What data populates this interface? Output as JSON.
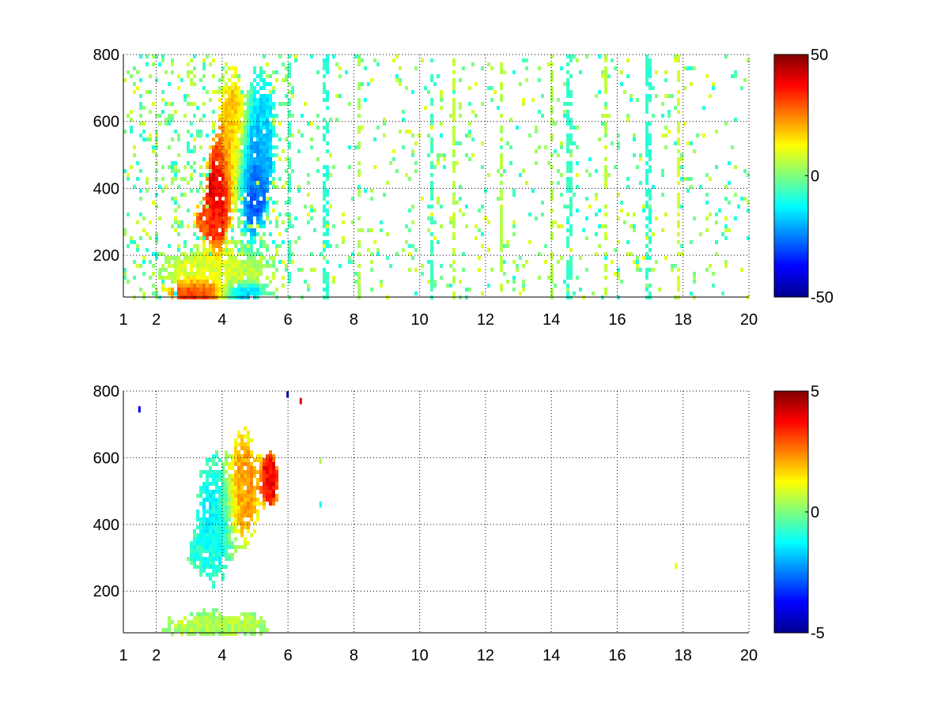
{
  "chart_data": [
    {
      "type": "heatmap",
      "title": "",
      "xlabel": "",
      "ylabel": "",
      "xlim": [
        1,
        20
      ],
      "ylim": [
        75,
        800
      ],
      "x_ticks": [
        1,
        2,
        4,
        6,
        8,
        10,
        12,
        14,
        16,
        18,
        20
      ],
      "y_ticks": [
        200,
        400,
        600,
        800
      ],
      "grid": true,
      "colormap": "jet",
      "colorbar": {
        "range": [
          -50,
          50
        ],
        "ticks": [
          -50,
          0,
          50
        ]
      },
      "blobs": [
        {
          "x": 3.8,
          "y": 390,
          "sx": 0.22,
          "sy": 90,
          "value": 42
        },
        {
          "x": 3.55,
          "y": 310,
          "sx": 0.3,
          "sy": 35,
          "value": 28
        },
        {
          "x": 4.25,
          "y": 560,
          "sx": 0.3,
          "sy": 130,
          "value": 18
        },
        {
          "x": 4.9,
          "y": 430,
          "sx": 0.28,
          "sy": 110,
          "value": -30
        },
        {
          "x": 5.2,
          "y": 580,
          "sx": 0.25,
          "sy": 110,
          "value": -14
        },
        {
          "x": 3.3,
          "y": 95,
          "sx": 0.55,
          "sy": 22,
          "value": 38
        },
        {
          "x": 4.5,
          "y": 95,
          "sx": 0.4,
          "sy": 18,
          "value": -25
        },
        {
          "x": 3.8,
          "y": 160,
          "sx": 1.1,
          "sy": 45,
          "value": 8
        }
      ],
      "stripes": [
        {
          "x": 7.1,
          "value": -8
        },
        {
          "x": 10.3,
          "value": -6
        },
        {
          "x": 11.0,
          "value": 6
        },
        {
          "x": 12.4,
          "value": 5
        },
        {
          "x": 14.0,
          "value": 5
        },
        {
          "x": 14.5,
          "value": -7
        },
        {
          "x": 15.6,
          "value": 6
        },
        {
          "x": 16.9,
          "value": -8
        },
        {
          "x": 17.8,
          "value": 8
        },
        {
          "x": 6.0,
          "value": -6
        },
        {
          "x": 8.1,
          "value": 5
        }
      ]
    },
    {
      "type": "heatmap",
      "title": "",
      "xlabel": "",
      "ylabel": "",
      "xlim": [
        1,
        20
      ],
      "ylim": [
        75,
        800
      ],
      "x_ticks": [
        1,
        2,
        4,
        6,
        8,
        10,
        12,
        14,
        16,
        18,
        20
      ],
      "y_ticks": [
        200,
        400,
        600,
        800
      ],
      "grid": true,
      "colormap": "jet",
      "colorbar": {
        "range": [
          -5,
          5
        ],
        "ticks": [
          -5,
          0,
          5
        ]
      },
      "blobs": [
        {
          "x": 3.7,
          "y": 420,
          "sx": 0.35,
          "sy": 120,
          "value": -1.2
        },
        {
          "x": 4.6,
          "y": 520,
          "sx": 0.3,
          "sy": 110,
          "value": 2.2
        },
        {
          "x": 5.4,
          "y": 540,
          "sx": 0.18,
          "sy": 60,
          "value": 3.8
        },
        {
          "x": 3.4,
          "y": 320,
          "sx": 0.3,
          "sy": 30,
          "value": -0.8
        },
        {
          "x": 3.8,
          "y": 105,
          "sx": 1.1,
          "sy": 25,
          "value": 0.5
        }
      ],
      "stripes": [],
      "specks": [
        {
          "x": 1.5,
          "y": 745,
          "value": -4
        },
        {
          "x": 6.0,
          "y": 790,
          "value": -4.5
        },
        {
          "x": 6.4,
          "y": 770,
          "value": 4
        },
        {
          "x": 7.0,
          "y": 590,
          "value": 0.5
        },
        {
          "x": 7.0,
          "y": 460,
          "value": -1
        },
        {
          "x": 17.8,
          "y": 275,
          "value": 1
        }
      ]
    }
  ]
}
